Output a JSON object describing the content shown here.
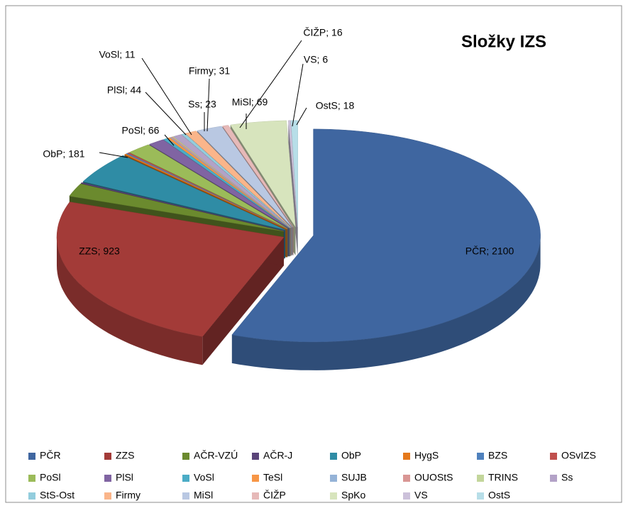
{
  "chart_data": {
    "type": "pie3d",
    "title": "Složky IZS",
    "categories": [
      "PČR",
      "ZZS",
      "AČR-VZÚ",
      "AČR-J",
      "ObP",
      "HygS",
      "BZS",
      "OSvIZS",
      "PoSl",
      "PlSl",
      "VoSl",
      "TeSl",
      "SUJB",
      "OUOStS",
      "TRINS",
      "Ss",
      "StS-Ost",
      "Firmy",
      "MiSl",
      "ČIŽP",
      "SpKo",
      "VS",
      "OstS"
    ],
    "values": [
      2100,
      923,
      75,
      5,
      181,
      5,
      5,
      5,
      66,
      44,
      11,
      8,
      3,
      4,
      3,
      23,
      10,
      31,
      69,
      16,
      150,
      6,
      18
    ],
    "value_labels": [
      "PČR; 2100",
      "ZZS; 923",
      null,
      null,
      "ObP; 181",
      null,
      null,
      null,
      "PoSl; 66",
      "PlSl; 44",
      "VoSl; 11",
      null,
      null,
      null,
      null,
      "Ss; 23",
      null,
      "Firmy; 31",
      "MiSl; 69",
      "ČIŽP; 16",
      null,
      "VS; 6",
      "OstS; 18"
    ],
    "colors": [
      "#3f66a0",
      "#a33b38",
      "#6b8a2e",
      "#5a4479",
      "#2f8ca5",
      "#e5791c",
      "#4f81bd",
      "#c0504d",
      "#9bbb59",
      "#8064a2",
      "#4bacc6",
      "#f79646",
      "#95b3d7",
      "#d99694",
      "#c3d69b",
      "#b3a2c7",
      "#93cddd",
      "#fab58a",
      "#b9c8e2",
      "#e6b9b8",
      "#d7e4bd",
      "#ccc1da",
      "#b7dee8"
    ],
    "legend": "bottom"
  }
}
